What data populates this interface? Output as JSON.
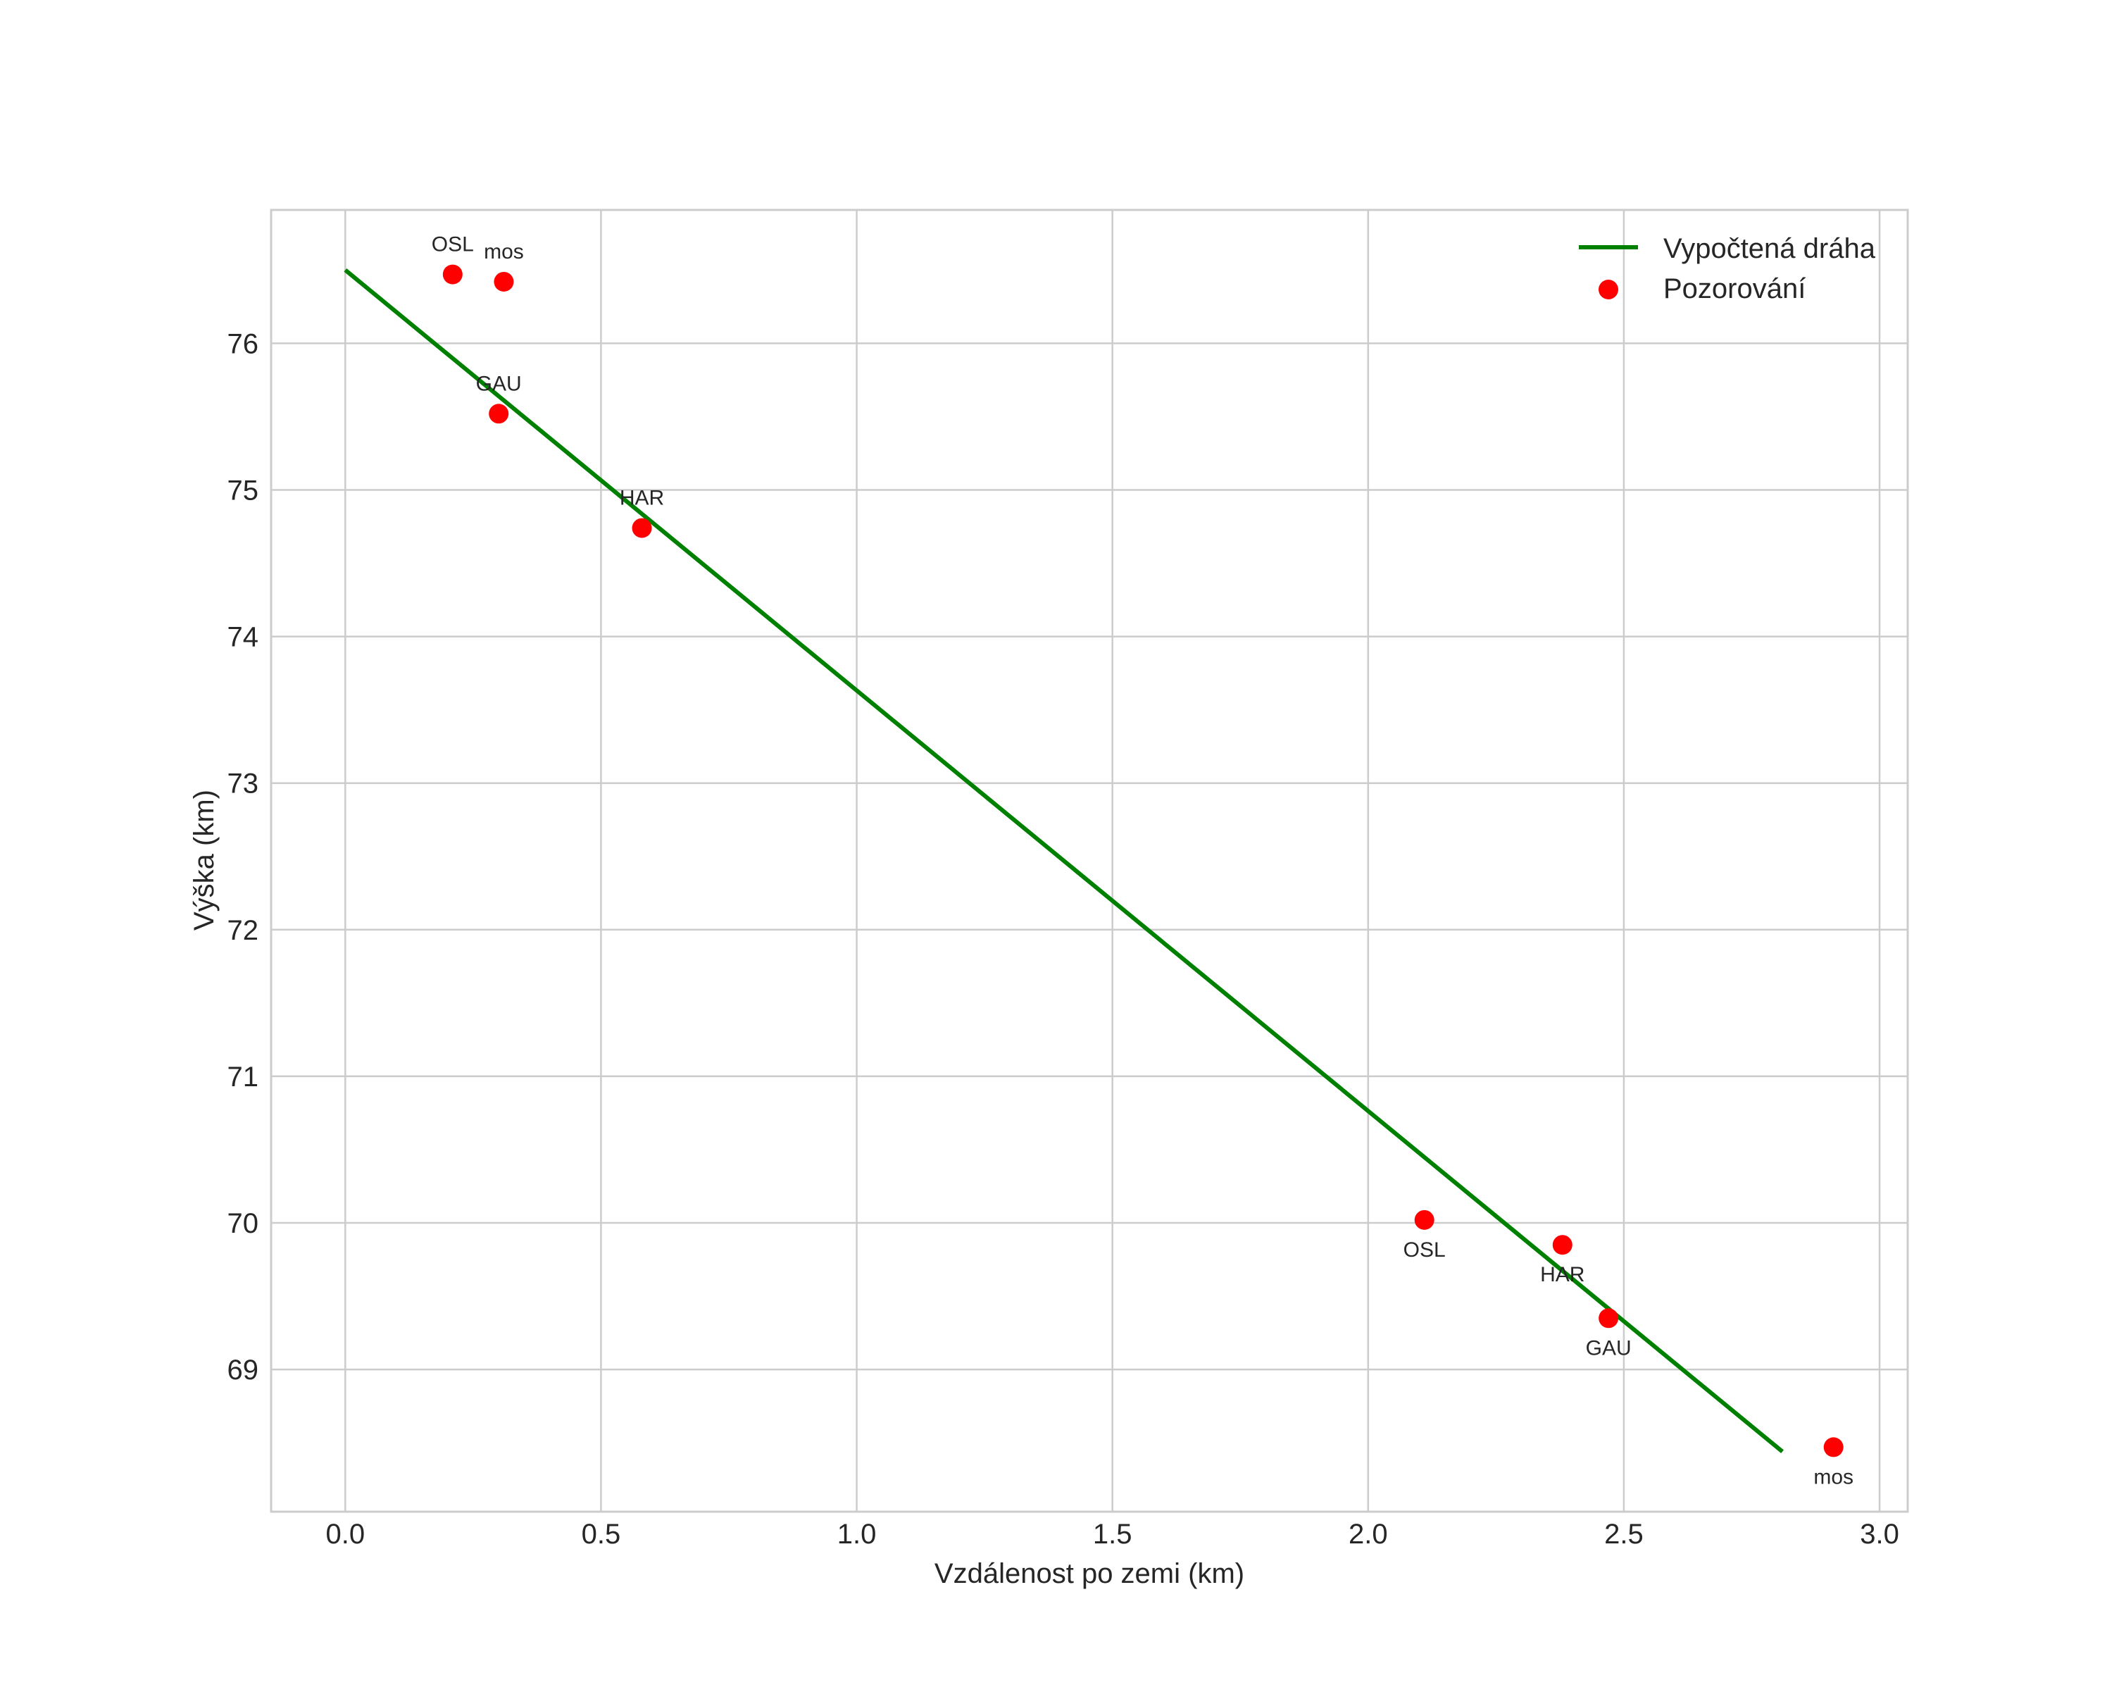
{
  "chart_data": {
    "type": "scatter",
    "title": "",
    "xlabel": "Vzdálenost po zemi (km)",
    "ylabel": "Výška (km)",
    "xlim": [
      -0.145,
      3.055
    ],
    "ylim": [
      68.03,
      76.91
    ],
    "grid": true,
    "legend_position": "upper right",
    "x_ticks": [
      0.0,
      0.5,
      1.0,
      1.5,
      2.0,
      2.5,
      3.0
    ],
    "x_tick_labels": [
      "0.0",
      "0.5",
      "1.0",
      "1.5",
      "2.0",
      "2.5",
      "3.0"
    ],
    "y_ticks": [
      69,
      70,
      71,
      72,
      73,
      74,
      75,
      76
    ],
    "y_tick_labels": [
      "69",
      "70",
      "71",
      "72",
      "73",
      "74",
      "75",
      "76"
    ],
    "series": [
      {
        "name": "Vypočtená dráha",
        "kind": "line",
        "color": "#008000",
        "x": [
          0.0,
          2.81
        ],
        "y": [
          76.5,
          68.44
        ]
      },
      {
        "name": "Pozorování",
        "kind": "scatter",
        "color": "#ff0000",
        "points": [
          {
            "label": "OSL",
            "x": 0.21,
            "y": 76.47,
            "label_pos": "above"
          },
          {
            "label": "mos",
            "x": 0.31,
            "y": 76.42,
            "label_pos": "above"
          },
          {
            "label": "GAU",
            "x": 0.3,
            "y": 75.52,
            "label_pos": "above"
          },
          {
            "label": "HAR",
            "x": 0.58,
            "y": 74.74,
            "label_pos": "above"
          },
          {
            "label": "OSL",
            "x": 2.11,
            "y": 70.02,
            "label_pos": "below"
          },
          {
            "label": "HAR",
            "x": 2.38,
            "y": 69.85,
            "label_pos": "below"
          },
          {
            "label": "GAU",
            "x": 2.47,
            "y": 69.35,
            "label_pos": "below"
          },
          {
            "label": "mos",
            "x": 2.91,
            "y": 68.47,
            "label_pos": "below"
          }
        ]
      }
    ],
    "legend": [
      {
        "label": "Vypočtená dráha",
        "marker": "line",
        "color": "#008000"
      },
      {
        "label": "Pozorování",
        "marker": "dot",
        "color": "#ff0000"
      }
    ]
  },
  "colors": {
    "grid": "#cccccc",
    "text": "#262626",
    "background": "#ffffff"
  }
}
